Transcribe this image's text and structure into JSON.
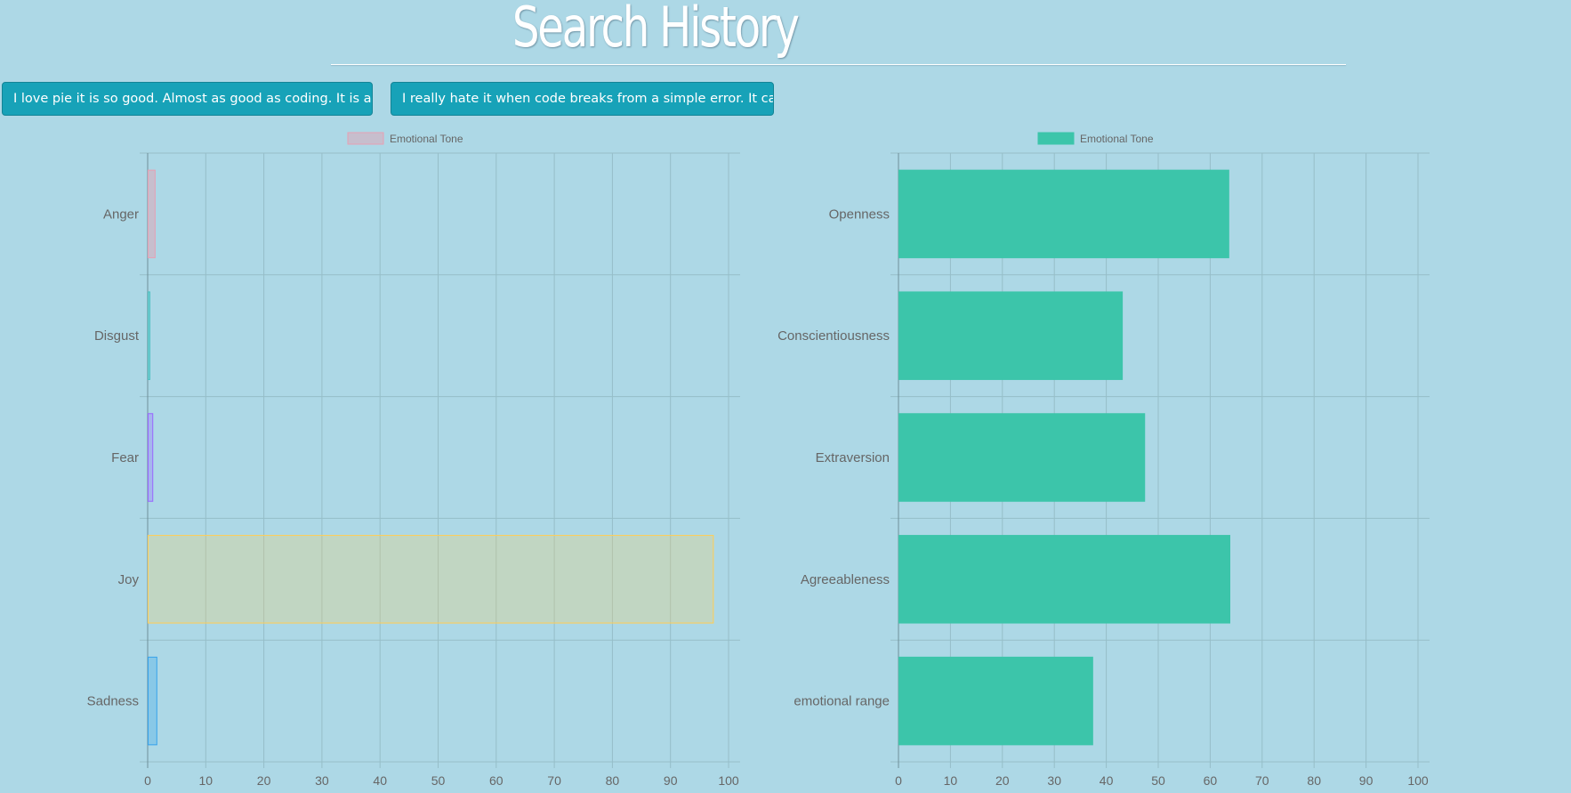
{
  "header": {
    "title": "Search History"
  },
  "history": {
    "items": [
      {
        "label": "I love pie it is so good. Almost as good as coding. It is a"
      },
      {
        "label": "I really hate it when code breaks from a simple error. It ca"
      }
    ]
  },
  "colors": {
    "background": "#add8e6",
    "button": "#17a2b8",
    "grid": "#96bec8",
    "tick_text": "#666666",
    "teal_bar": "#3cc5aa"
  },
  "chart_data": [
    {
      "type": "bar",
      "orientation": "horizontal",
      "categories": [
        "Anger",
        "Disgust",
        "Fear",
        "Joy",
        "Sadness"
      ],
      "series": [
        {
          "name": "Emotional Tone",
          "values": [
            1.2,
            0.3,
            0.8,
            97.3,
            1.5
          ],
          "fill_colors": [
            "rgba(230,160,175,0.45)",
            "rgba(75,192,192,0.45)",
            "rgba(153,102,255,0.3)",
            "rgba(255,206,86,0.25)",
            "rgba(54,162,235,0.3)"
          ],
          "border_colors": [
            "#e6a0b4",
            "#4bc0c0",
            "#9966ff",
            "#ffce56",
            "#36a2eb"
          ],
          "legend_swatch_fill": "rgba(230,160,175,0.45)",
          "legend_swatch_border": "#e6a0b4"
        }
      ],
      "xlim": [
        0,
        100
      ],
      "xticks": [
        0,
        10,
        20,
        30,
        40,
        50,
        60,
        70,
        80,
        90,
        100
      ],
      "grid": true,
      "legend": "top"
    },
    {
      "type": "bar",
      "orientation": "horizontal",
      "categories": [
        "Openness",
        "Conscientiousness",
        "Extraversion",
        "Agreeableness",
        "emotional range"
      ],
      "series": [
        {
          "name": "Emotional Tone",
          "values": [
            63.5,
            43,
            47.3,
            63.7,
            37.3
          ],
          "fill_colors": [
            "#3cc5aa",
            "#3cc5aa",
            "#3cc5aa",
            "#3cc5aa",
            "#3cc5aa"
          ],
          "border_colors": [
            "#3cc5aa",
            "#3cc5aa",
            "#3cc5aa",
            "#3cc5aa",
            "#3cc5aa"
          ],
          "legend_swatch_fill": "#3cc5aa",
          "legend_swatch_border": "#3cc5aa"
        }
      ],
      "xlim": [
        0,
        100
      ],
      "xticks": [
        0,
        10,
        20,
        30,
        40,
        50,
        60,
        70,
        80,
        90,
        100
      ],
      "grid": true,
      "legend": "top"
    }
  ]
}
